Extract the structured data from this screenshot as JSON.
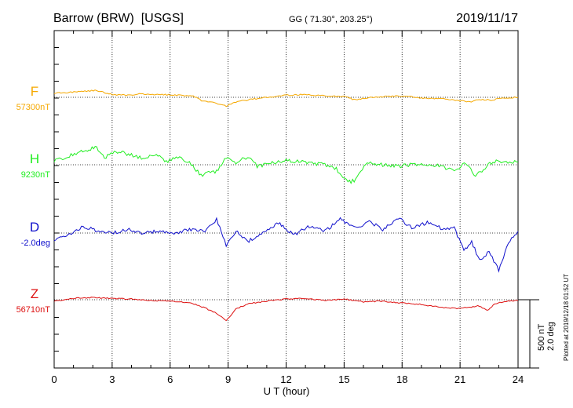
{
  "header": {
    "station": "Barrow (BRW)  [USGS]",
    "coords": "GG ( 71.30°, 203.25°)",
    "date": "2019/11/17"
  },
  "chart_data": {
    "type": "line",
    "xlabel": "U T (hour)",
    "xlim": [
      0,
      24
    ],
    "xticks": [
      0,
      3,
      6,
      9,
      12,
      15,
      18,
      21,
      24
    ],
    "scale_note": [
      "500 nT",
      "2.0 deg"
    ],
    "plotted_note": "Plotted at 2019/12/18 01:52 UT",
    "grid": true,
    "series": [
      {
        "name": "F",
        "baseline_label": "57300nT",
        "color": "#f5a800",
        "unit": "nT",
        "base": 57300,
        "x": [
          0,
          0.7,
          1.5,
          2.2,
          3,
          3.8,
          4.5,
          5.5,
          6.5,
          7.2,
          7.7,
          8.3,
          8.9,
          9.4,
          10.2,
          11,
          12,
          13,
          14,
          15,
          15.6,
          16.3,
          17,
          18,
          19,
          20,
          21,
          21.5,
          22,
          22.6,
          23.3,
          24
        ],
        "y": [
          57330,
          57335,
          57345,
          57350,
          57320,
          57315,
          57325,
          57320,
          57315,
          57310,
          57270,
          57260,
          57235,
          57265,
          57285,
          57300,
          57315,
          57320,
          57310,
          57305,
          57280,
          57300,
          57305,
          57310,
          57295,
          57290,
          57275,
          57265,
          57285,
          57280,
          57295,
          57300
        ]
      },
      {
        "name": "H",
        "baseline_label": "9230nT",
        "color": "#22ee22",
        "unit": "nT",
        "base": 9230,
        "x": [
          0,
          0.7,
          1.4,
          2.2,
          2.6,
          3.2,
          4,
          4.6,
          5.2,
          5.8,
          6.4,
          7,
          7.6,
          8,
          8.4,
          8.9,
          9.4,
          10,
          10.5,
          11.2,
          12,
          13,
          14,
          14.6,
          15.2,
          15.6,
          16.2,
          17,
          18,
          19,
          20,
          20.7,
          21.3,
          21.8,
          22.3,
          22.7,
          23.3,
          24
        ],
        "y": [
          9260,
          9290,
          9330,
          9355,
          9280,
          9330,
          9300,
          9280,
          9310,
          9250,
          9290,
          9250,
          9150,
          9170,
          9180,
          9280,
          9240,
          9290,
          9220,
          9240,
          9260,
          9250,
          9230,
          9200,
          9100,
          9120,
          9250,
          9230,
          9220,
          9240,
          9220,
          9190,
          9240,
          9150,
          9210,
          9255,
          9250,
          9250
        ]
      },
      {
        "name": "D",
        "baseline_label": "-2.0deg",
        "color": "#1010cc",
        "unit": "deg",
        "base": -2.0,
        "x": [
          0,
          0.8,
          1.5,
          2.3,
          3,
          3.8,
          4.6,
          5.4,
          6.2,
          7,
          7.8,
          8.4,
          8.9,
          9.4,
          10,
          10.8,
          11.6,
          12.4,
          13.2,
          14,
          14.8,
          15.6,
          16.3,
          17,
          17.8,
          18.5,
          19.3,
          20,
          20.7,
          21.2,
          21.6,
          22,
          22.5,
          23,
          23.5,
          24
        ],
        "y": [
          -2.2,
          -2.05,
          -1.8,
          -1.95,
          -2.0,
          -1.9,
          -2.0,
          -1.95,
          -2.0,
          -1.9,
          -1.95,
          -1.6,
          -2.35,
          -1.95,
          -2.25,
          -2.0,
          -1.7,
          -2.05,
          -1.8,
          -1.95,
          -1.6,
          -1.85,
          -1.65,
          -1.9,
          -1.55,
          -1.85,
          -1.7,
          -1.85,
          -1.85,
          -2.5,
          -2.25,
          -2.8,
          -2.55,
          -3.1,
          -2.3,
          -1.95
        ]
      },
      {
        "name": "Z",
        "baseline_label": "56710nT",
        "color": "#dd1111",
        "unit": "nT",
        "base": 56710,
        "x": [
          0,
          1,
          2,
          3,
          4,
          5,
          6,
          7,
          7.8,
          8.4,
          8.9,
          9.4,
          10,
          11,
          12,
          13,
          14,
          15,
          16,
          17,
          18,
          19,
          20,
          21,
          22,
          22.4,
          22.8,
          23.4,
          24
        ],
        "y": [
          56700,
          56720,
          56725,
          56720,
          56715,
          56705,
          56700,
          56690,
          56650,
          56610,
          56555,
          56640,
          56680,
          56700,
          56715,
          56720,
          56705,
          56715,
          56695,
          56700,
          56685,
          56675,
          56655,
          56645,
          56665,
          56630,
          56680,
          56700,
          56705
        ]
      }
    ]
  }
}
